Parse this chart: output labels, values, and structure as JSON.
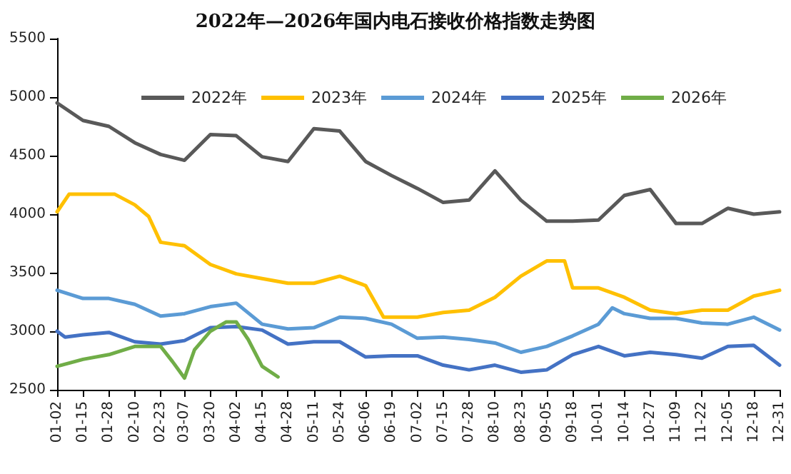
{
  "chart_data": {
    "type": "line",
    "title": "2022年—2026年国内电石接收价格指数走势图",
    "xlim": [
      "--01-02",
      "--12-31"
    ],
    "xticks": [
      {
        "value": "--01-02",
        "label": "01-02"
      },
      {
        "value": "--01-15",
        "label": "01-15"
      },
      {
        "value": "--01-28",
        "label": "01-28"
      },
      {
        "value": "--02-10",
        "label": "02-10"
      },
      {
        "value": "--02-23",
        "label": "02-23"
      },
      {
        "value": "--03-07",
        "label": "03-07"
      },
      {
        "value": "--03-20",
        "label": "03-20"
      },
      {
        "value": "--04-02",
        "label": "04-02"
      },
      {
        "value": "--04-15",
        "label": "04-15"
      },
      {
        "value": "--04-28",
        "label": "04-28"
      },
      {
        "value": "--05-11",
        "label": "05-11"
      },
      {
        "value": "--05-24",
        "label": "05-24"
      },
      {
        "value": "--06-06",
        "label": "06-06"
      },
      {
        "value": "--06-19",
        "label": "06-19"
      },
      {
        "value": "--07-02",
        "label": "07-02"
      },
      {
        "value": "--07-15",
        "label": "07-15"
      },
      {
        "value": "--07-28",
        "label": "07-28"
      },
      {
        "value": "--08-10",
        "label": "08-10"
      },
      {
        "value": "--08-23",
        "label": "08-23"
      },
      {
        "value": "--09-05",
        "label": "09-05"
      },
      {
        "value": "--09-18",
        "label": "09-18"
      },
      {
        "value": "--10-01",
        "label": "10-01"
      },
      {
        "value": "--10-14",
        "label": "10-14"
      },
      {
        "value": "--10-27",
        "label": "10-27"
      },
      {
        "value": "--11-09",
        "label": "11-09"
      },
      {
        "value": "--11-22",
        "label": "11-22"
      },
      {
        "value": "--12-05",
        "label": "12-05"
      },
      {
        "value": "--12-18",
        "label": "12-18"
      },
      {
        "value": "--12-31",
        "label": "12-31"
      }
    ],
    "ylim": [
      2500,
      5500
    ],
    "yticks": [
      2500,
      3000,
      3500,
      4000,
      4500,
      5000,
      5500
    ],
    "grid": false,
    "legend": "top right",
    "marker": "none",
    "line_style": "solid",
    "series": [
      {
        "name": "2022年",
        "color": "#595959",
        "x": [
          "--01-02",
          "--01-15",
          "--01-28",
          "--02-10",
          "--02-23",
          "--03-07",
          "--03-20",
          "--04-02",
          "--04-15",
          "--04-28",
          "--05-11",
          "--05-24",
          "--06-06",
          "--06-19",
          "--07-02",
          "--07-15",
          "--07-28",
          "--08-10",
          "--08-23",
          "--09-05",
          "--09-18",
          "--10-01",
          "--10-14",
          "--10-27",
          "--11-09",
          "--11-22",
          "--12-05",
          "--12-18",
          "--12-31"
        ],
        "values": [
          4950,
          4800,
          4750,
          4610,
          4510,
          4460,
          4680,
          4670,
          4490,
          4450,
          4730,
          4710,
          4450,
          4330,
          4220,
          4100,
          4120,
          4370,
          4120,
          3940,
          3940,
          3950,
          4160,
          4210,
          3920,
          3920,
          4050,
          4000,
          4020
        ]
      },
      {
        "name": "2023年",
        "color": "#ffc000",
        "x": [
          "--01-02",
          "--01-08",
          "--01-31",
          "--02-10",
          "--02-17",
          "--02-23",
          "--03-07",
          "--03-20",
          "--04-02",
          "--04-15",
          "--04-28",
          "--05-11",
          "--05-24",
          "--06-06",
          "--06-15",
          "--07-02",
          "--07-15",
          "--07-28",
          "--08-10",
          "--08-23",
          "--09-05",
          "--09-14",
          "--09-18",
          "--10-01",
          "--10-14",
          "--10-27",
          "--11-09",
          "--11-22",
          "--12-05",
          "--12-18",
          "--12-31"
        ],
        "values": [
          4020,
          4170,
          4170,
          4080,
          3980,
          3760,
          3730,
          3570,
          3490,
          3450,
          3410,
          3410,
          3470,
          3390,
          3120,
          3120,
          3160,
          3180,
          3290,
          3470,
          3600,
          3600,
          3370,
          3370,
          3290,
          3180,
          3150,
          3180,
          3180,
          3300,
          3350
        ]
      },
      {
        "name": "2024年",
        "color": "#5b9bd5",
        "x": [
          "--01-02",
          "--01-15",
          "--01-28",
          "--02-10",
          "--02-23",
          "--03-07",
          "--03-20",
          "--04-02",
          "--04-15",
          "--04-28",
          "--05-11",
          "--05-24",
          "--06-06",
          "--06-19",
          "--07-02",
          "--07-15",
          "--07-28",
          "--08-10",
          "--08-23",
          "--09-05",
          "--09-18",
          "--10-01",
          "--10-08",
          "--10-14",
          "--10-27",
          "--11-09",
          "--11-22",
          "--12-05",
          "--12-18",
          "--12-31"
        ],
        "values": [
          3350,
          3280,
          3280,
          3230,
          3130,
          3150,
          3210,
          3240,
          3060,
          3020,
          3030,
          3120,
          3110,
          3060,
          2940,
          2950,
          2930,
          2900,
          2820,
          2870,
          2960,
          3060,
          3200,
          3150,
          3110,
          3110,
          3070,
          3060,
          3120,
          3010
        ]
      },
      {
        "name": "2025年",
        "color": "#4472c4",
        "x": [
          "--01-02",
          "--01-06",
          "--01-15",
          "--01-28",
          "--02-10",
          "--02-23",
          "--03-07",
          "--03-20",
          "--04-02",
          "--04-15",
          "--04-28",
          "--05-11",
          "--05-24",
          "--06-06",
          "--06-19",
          "--07-02",
          "--07-15",
          "--07-28",
          "--08-10",
          "--08-23",
          "--09-05",
          "--09-18",
          "--10-01",
          "--10-14",
          "--10-27",
          "--11-09",
          "--11-22",
          "--12-05",
          "--12-18",
          "--12-31"
        ],
        "values": [
          3000,
          2950,
          2970,
          2990,
          2910,
          2890,
          2920,
          3030,
          3040,
          3010,
          2890,
          2910,
          2910,
          2780,
          2790,
          2790,
          2710,
          2670,
          2710,
          2650,
          2670,
          2800,
          2870,
          2790,
          2820,
          2800,
          2770,
          2870,
          2880,
          2710
        ]
      },
      {
        "name": "2026年",
        "color": "#70ad47",
        "x": [
          "--01-02",
          "--01-15",
          "--01-28",
          "--02-10",
          "--02-23",
          "--03-01",
          "--03-07",
          "--03-12",
          "--03-20",
          "--03-28",
          "--04-02",
          "--04-08",
          "--04-15",
          "--04-23"
        ],
        "values": [
          2700,
          2760,
          2800,
          2870,
          2870,
          2740,
          2600,
          2840,
          3000,
          3080,
          3080,
          2930,
          2700,
          2610
        ]
      }
    ]
  }
}
